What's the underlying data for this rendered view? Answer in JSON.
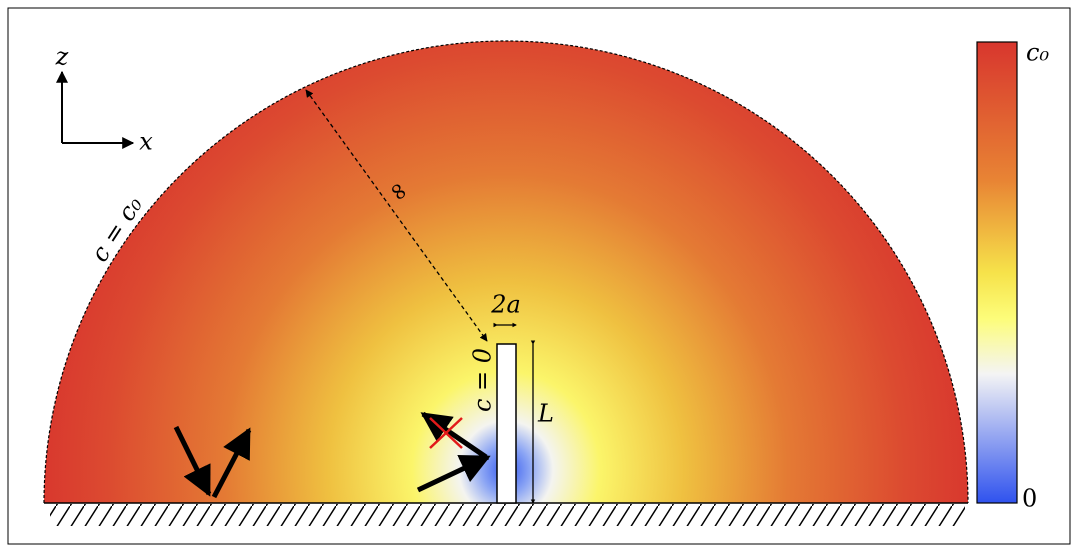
{
  "axes": {
    "z": "z",
    "x": "x"
  },
  "labels": {
    "boundary": "c = c₀",
    "distance": "∞",
    "width": "2a",
    "wall": "c = 0",
    "length": "L"
  },
  "colorbar": {
    "max": "c₀",
    "min": "0"
  }
}
